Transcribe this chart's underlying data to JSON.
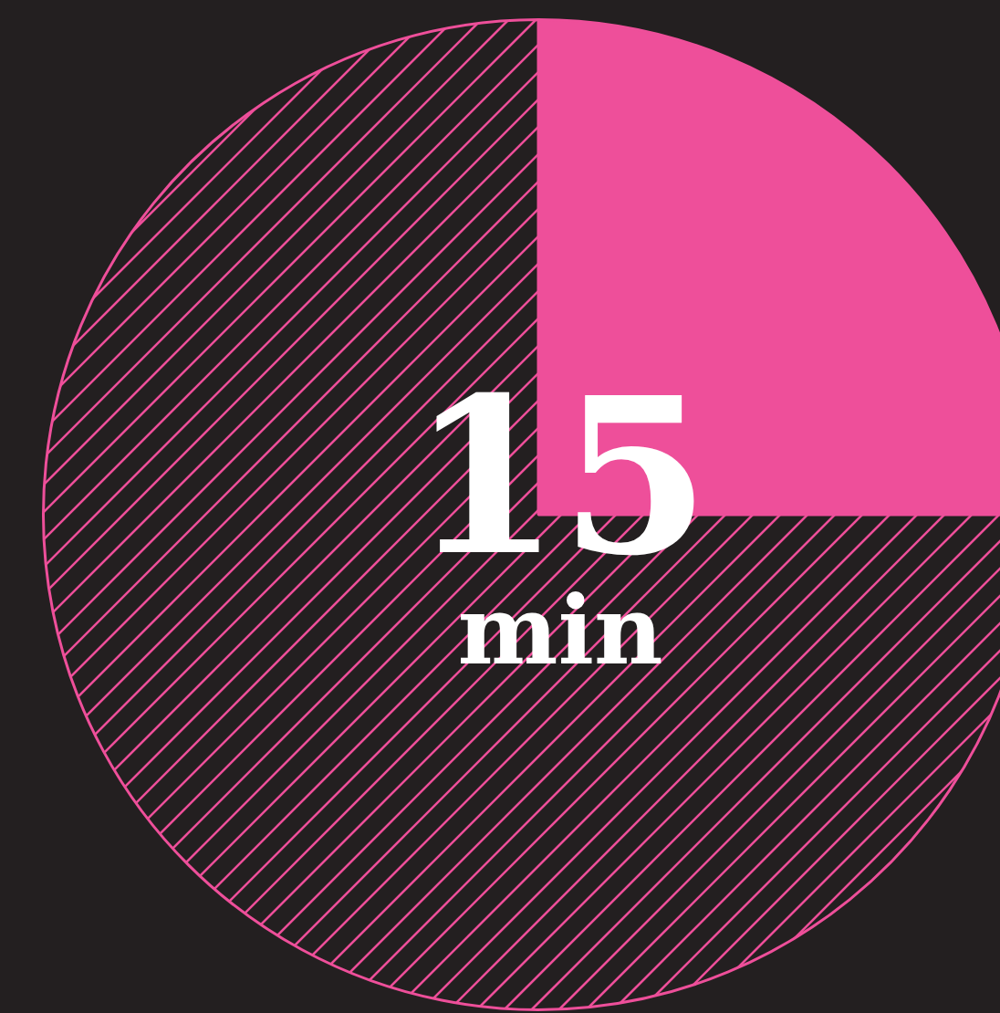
{
  "chart_data": {
    "type": "pie",
    "categories": [
      null,
      null
    ],
    "values": [
      25,
      75
    ],
    "colors": [
      "#ee4f9a",
      "#231f20"
    ],
    "legend": false,
    "annotations": [
      "15",
      "min"
    ]
  }
}
